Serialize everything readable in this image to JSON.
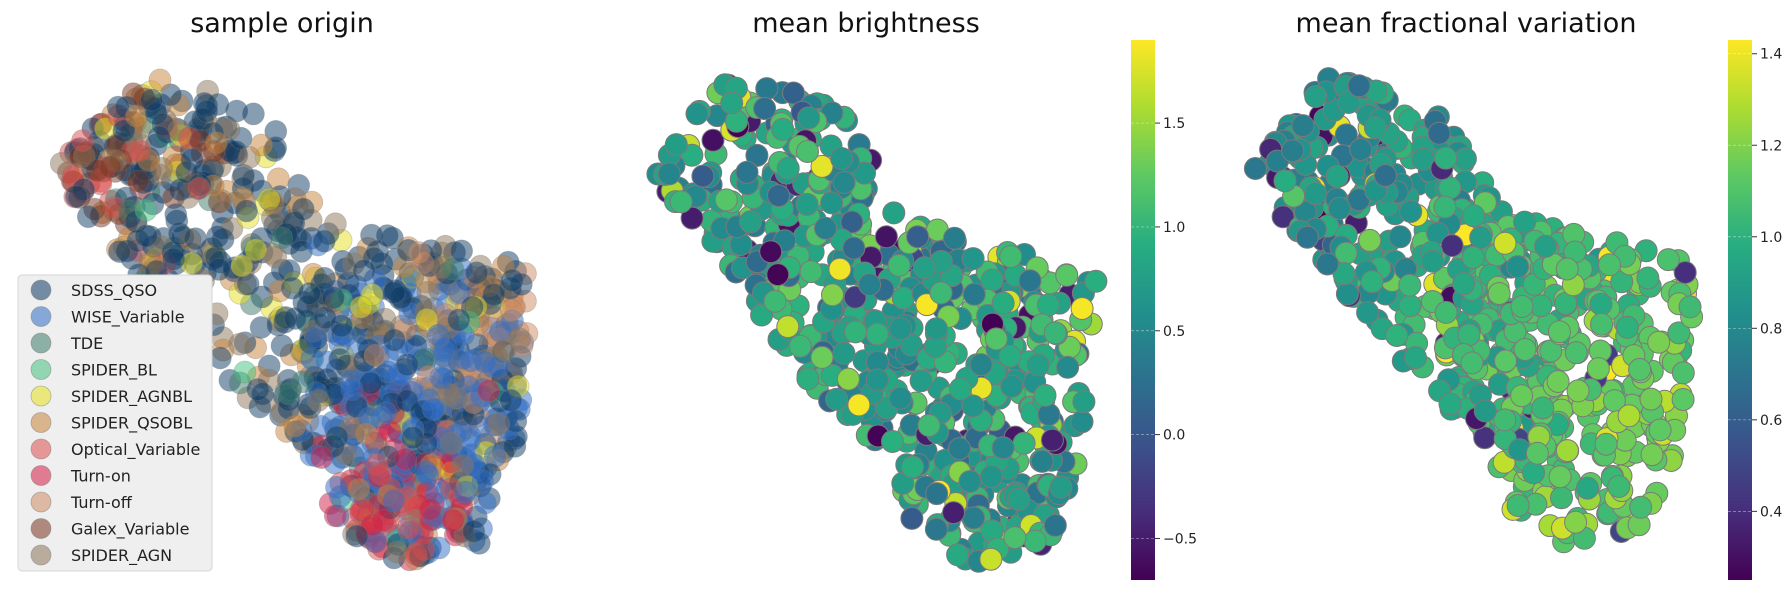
{
  "chart_data": [
    {
      "type": "scatter",
      "title": "sample origin",
      "legend_position": "lower-left",
      "series": [
        {
          "name": "SDSS_QSO",
          "color": "#0d3b66",
          "n": 380,
          "region": "diagonal band, left-upper to right-lower"
        },
        {
          "name": "WISE_Variable",
          "color": "#2f6ec7",
          "n": 230,
          "region": "right-lower lobe"
        },
        {
          "name": "TDE",
          "color": "#3c7b6a",
          "n": 20,
          "region": "scattered"
        },
        {
          "name": "SPIDER_BL",
          "color": "#43c17d",
          "n": 12,
          "region": "scattered"
        },
        {
          "name": "SPIDER_AGNBL",
          "color": "#e6e01f",
          "n": 45,
          "region": "scattered"
        },
        {
          "name": "SPIDER_QSOBL",
          "color": "#c8843a",
          "n": 90,
          "region": "scattered"
        },
        {
          "name": "Optical_Variable",
          "color": "#dc4c4c",
          "n": 60,
          "region": "upper-left and lower lobe"
        },
        {
          "name": "Turn-on",
          "color": "#d21e46",
          "n": 60,
          "region": "lower lobe"
        },
        {
          "name": "Turn-off",
          "color": "#cd8a62",
          "n": 50,
          "region": "right edge"
        },
        {
          "name": "Galex_Variable",
          "color": "#7a3520",
          "n": 40,
          "region": "upper-left"
        },
        {
          "name": "SPIDER_AGN",
          "color": "#8e7559",
          "n": 110,
          "region": "scattered"
        }
      ]
    },
    {
      "type": "scatter",
      "title": "mean brightness",
      "colormap": "viridis",
      "color_range": [
        -0.7,
        1.9
      ],
      "colorbar_ticks": [
        "1.5",
        "1.0",
        "0.5",
        "0.0",
        "−0.5"
      ],
      "colorbar_tick_values": [
        1.5,
        1.0,
        0.5,
        0.0,
        -0.5
      ],
      "value_distribution": "mostly 0.3–1.2, few outliers near −0.7 and 1.9"
    },
    {
      "type": "scatter",
      "title": "mean fractional variation",
      "colormap": "viridis",
      "color_range": [
        0.25,
        1.43
      ],
      "colorbar_ticks": [
        "1.4",
        "1.2",
        "1.0",
        "0.8",
        "0.6",
        "0.4"
      ],
      "colorbar_tick_values": [
        1.4,
        1.2,
        1.0,
        0.8,
        0.6,
        0.4
      ],
      "value_distribution": "low (~0.8) upper-left, rising to ~1.3 toward right-lower edge"
    }
  ],
  "colors": {
    "point_edge": "#7a7a7a",
    "legend_bg": "#efefef",
    "legend_border": "#d4d4d4"
  }
}
